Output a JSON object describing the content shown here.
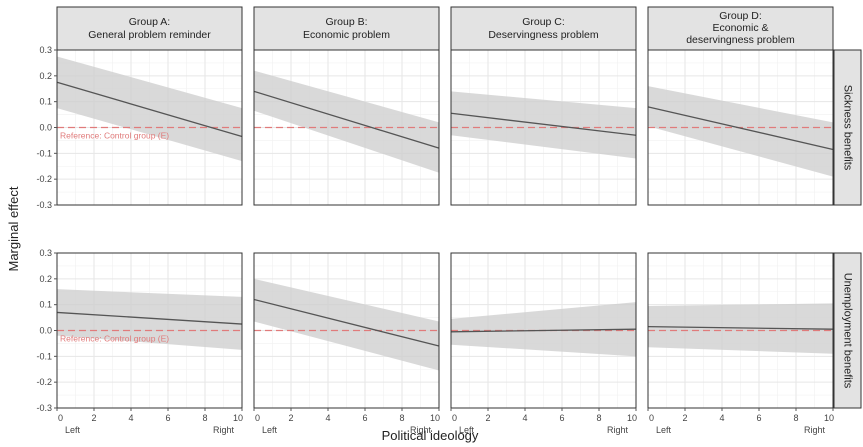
{
  "chart_data": {
    "type": "line",
    "xlabel": "Political ideology",
    "ylabel": "Marginal effect",
    "xlim": [
      0,
      10
    ],
    "ylim": [
      -0.3,
      0.3
    ],
    "x_ticks": [
      "0",
      "2",
      "4",
      "6",
      "8",
      "10"
    ],
    "y_ticks": [
      "0.3",
      "0.2",
      "0.1",
      "0.0",
      "-0.1",
      "-0.2",
      "-0.3"
    ],
    "x_end_labels": {
      "left": "Left",
      "right": "Right"
    },
    "grid": true,
    "reference_line": {
      "y": 0.0,
      "color": "#e07b7b",
      "label": "Reference: Control group (E)"
    },
    "line_color": "#555555",
    "band_color": "#cfcfcf",
    "columns": [
      {
        "id": "A",
        "title_line1": "Group A:",
        "title_line2": "General problem reminder",
        "title_line3": ""
      },
      {
        "id": "B",
        "title_line1": "Group B:",
        "title_line2": "Economic problem",
        "title_line3": ""
      },
      {
        "id": "C",
        "title_line1": "Group C:",
        "title_line2": "Deservingness problem",
        "title_line3": ""
      },
      {
        "id": "D",
        "title_line1": "Group D:",
        "title_line2": "Economic &",
        "title_line3": "deservingness problem"
      }
    ],
    "rows": [
      {
        "id": "sickness",
        "label": "Sickness benefits"
      },
      {
        "id": "unemployment",
        "label": "Unemployment benefits"
      }
    ],
    "panels": [
      {
        "row": 0,
        "col": 0,
        "x": [
          0,
          10
        ],
        "y": [
          0.175,
          -0.035
        ],
        "lower": [
          0.075,
          -0.13
        ],
        "upper": [
          0.275,
          0.075
        ]
      },
      {
        "row": 0,
        "col": 1,
        "x": [
          0,
          10
        ],
        "y": [
          0.14,
          -0.08
        ],
        "lower": [
          0.065,
          -0.175
        ],
        "upper": [
          0.22,
          0.02
        ]
      },
      {
        "row": 0,
        "col": 2,
        "x": [
          0,
          10
        ],
        "y": [
          0.055,
          -0.03
        ],
        "lower": [
          -0.03,
          -0.12
        ],
        "upper": [
          0.14,
          0.075
        ]
      },
      {
        "row": 0,
        "col": 3,
        "x": [
          0,
          10
        ],
        "y": [
          0.08,
          -0.085
        ],
        "lower": [
          0.005,
          -0.19
        ],
        "upper": [
          0.16,
          0.02
        ]
      },
      {
        "row": 1,
        "col": 0,
        "x": [
          0,
          10
        ],
        "y": [
          0.07,
          0.025
        ],
        "lower": [
          -0.02,
          -0.075
        ],
        "upper": [
          0.16,
          0.13
        ]
      },
      {
        "row": 1,
        "col": 1,
        "x": [
          0,
          10
        ],
        "y": [
          0.12,
          -0.06
        ],
        "lower": [
          0.035,
          -0.155
        ],
        "upper": [
          0.2,
          0.035
        ]
      },
      {
        "row": 1,
        "col": 2,
        "x": [
          0,
          10
        ],
        "y": [
          -0.005,
          0.005
        ],
        "lower": [
          -0.055,
          -0.1
        ],
        "upper": [
          0.045,
          0.11
        ]
      },
      {
        "row": 1,
        "col": 3,
        "x": [
          0,
          10
        ],
        "y": [
          0.015,
          0.005
        ],
        "lower": [
          -0.065,
          -0.09
        ],
        "upper": [
          0.095,
          0.105
        ]
      }
    ]
  }
}
